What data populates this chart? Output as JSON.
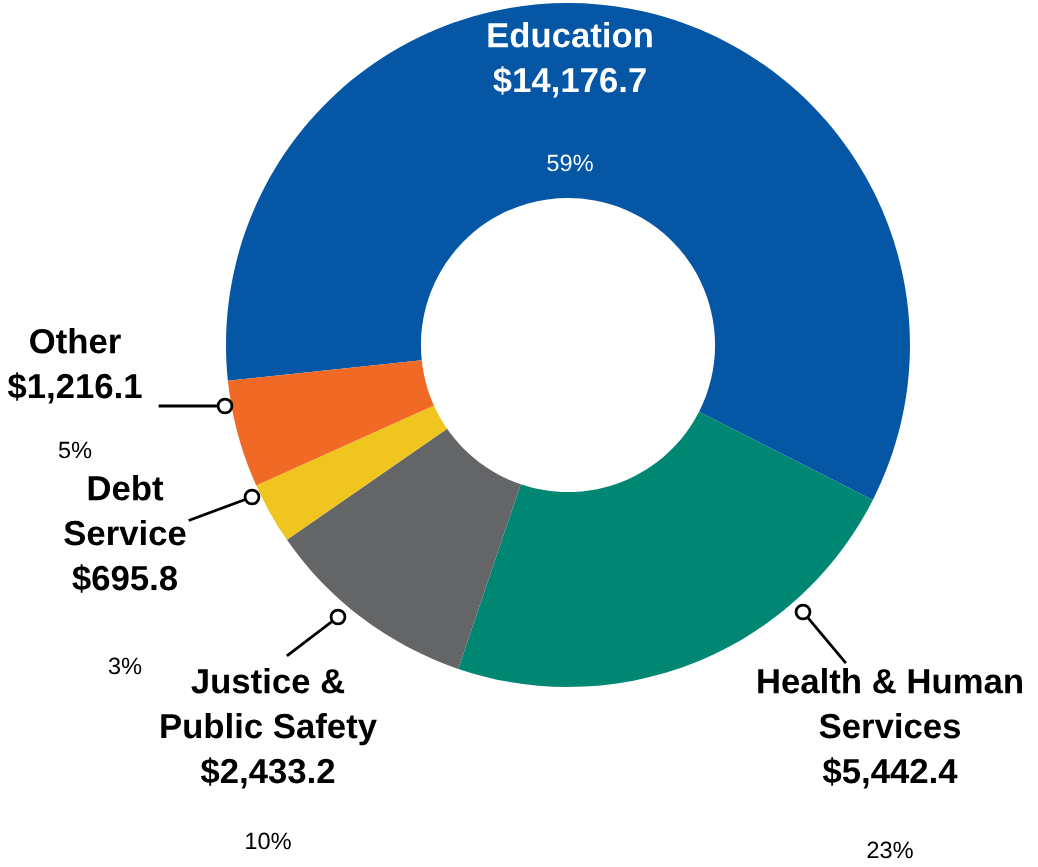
{
  "chart_data": {
    "type": "donut",
    "categories": [
      "Education",
      "Health & Human\nServices",
      "Justice &\nPublic Safety",
      "Debt\nService",
      "Other"
    ],
    "values": [
      14176.7,
      5442.4,
      2433.2,
      695.8,
      1216.1
    ],
    "value_labels": [
      "$14,176.7",
      "$5,442.4",
      "$2,433.2",
      "$695.8",
      "$1,216.1"
    ],
    "colors": [
      "#0557a6",
      "#008774",
      "#646567",
      "#f0c51f",
      "#f06a26"
    ],
    "annotations": [
      "59%",
      "23%",
      "10%",
      "3%",
      "5%"
    ]
  }
}
